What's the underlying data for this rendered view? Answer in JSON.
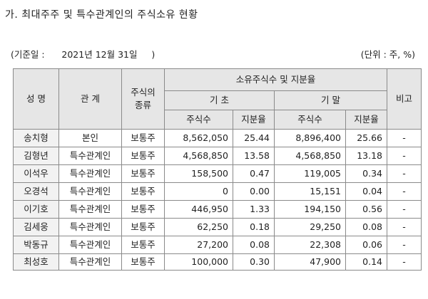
{
  "heading": "가. 최대주주 및 특수관계인의 주식소유 현황",
  "basis": {
    "open": "(기준일 :",
    "date": "2021년 12월 31일",
    "close": ")"
  },
  "unit": "(단위 : 주, %)",
  "columns": {
    "name": "성 명",
    "relation": "관 계",
    "stock_type": "주식의 종류",
    "holdings_group": "소유주식수 및 지분율",
    "period_start": "기 초",
    "period_end": "기 말",
    "shares": "주식수",
    "ratio": "지분율",
    "note": "비고"
  },
  "rows": [
    {
      "name": "송치형",
      "relation": "본인",
      "type": "보통주",
      "start_shares": "8,562,050",
      "start_ratio": "25.44",
      "end_shares": "8,896,400",
      "end_ratio": "25.66",
      "note": "-"
    },
    {
      "name": "김형년",
      "relation": "특수관계인",
      "type": "보통주",
      "start_shares": "4,568,850",
      "start_ratio": "13.58",
      "end_shares": "4,568,850",
      "end_ratio": "13.18",
      "note": "-"
    },
    {
      "name": "이석우",
      "relation": "특수관계인",
      "type": "보통주",
      "start_shares": "158,500",
      "start_ratio": "0.47",
      "end_shares": "119,005",
      "end_ratio": "0.34",
      "note": "-"
    },
    {
      "name": "오경석",
      "relation": "특수관계인",
      "type": "보통주",
      "start_shares": "0",
      "start_ratio": "0.00",
      "end_shares": "15,151",
      "end_ratio": "0.04",
      "note": "-"
    },
    {
      "name": "이기호",
      "relation": "특수관계인",
      "type": "보통주",
      "start_shares": "446,950",
      "start_ratio": "1.33",
      "end_shares": "194,150",
      "end_ratio": "0.56",
      "note": "-"
    },
    {
      "name": "김세웅",
      "relation": "특수관계인",
      "type": "보통주",
      "start_shares": "62,250",
      "start_ratio": "0.18",
      "end_shares": "29,250",
      "end_ratio": "0.08",
      "note": "-"
    },
    {
      "name": "박동규",
      "relation": "특수관계인",
      "type": "보통주",
      "start_shares": "27,200",
      "start_ratio": "0.08",
      "end_shares": "22,308",
      "end_ratio": "0.06",
      "note": "-"
    },
    {
      "name": "최성호",
      "relation": "특수관계인",
      "type": "보통주",
      "start_shares": "100,000",
      "start_ratio": "0.30",
      "end_shares": "47,900",
      "end_ratio": "0.14",
      "note": "-"
    }
  ]
}
